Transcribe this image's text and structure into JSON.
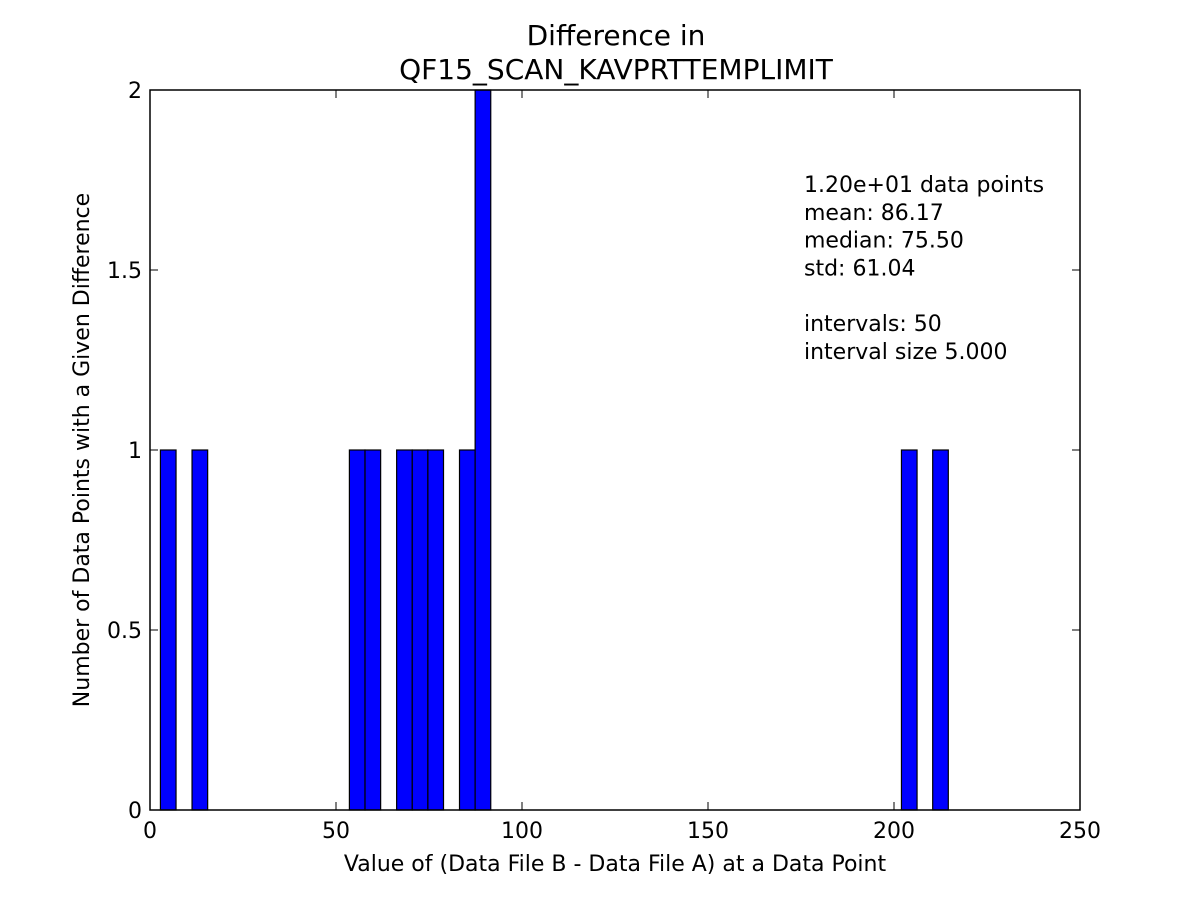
{
  "chart_data": {
    "type": "bar",
    "title": [
      "Difference in",
      "QF15_SCAN_KAVPRTTEMPLIMIT"
    ],
    "xlabel": "Value of (Data File B - Data File A) at a Data Point",
    "ylabel": "Number of Data Points with a Given Difference",
    "xlim": [
      0,
      250
    ],
    "ylim": [
      0,
      2
    ],
    "x_ticks": [
      0,
      50,
      100,
      150,
      200,
      250
    ],
    "x_tick_labels": [
      "0",
      "50",
      "100",
      "150",
      "200",
      "250"
    ],
    "y_ticks": [
      0,
      0.5,
      1,
      1.5,
      2
    ],
    "y_tick_labels": [
      "0",
      "0.5",
      "1",
      "1.5",
      "2"
    ],
    "bar_color": "#0000ff",
    "bar_width": 4.2,
    "bars": [
      {
        "x": 2.8,
        "value": 1
      },
      {
        "x": 11.3,
        "value": 1
      },
      {
        "x": 53.6,
        "value": 1
      },
      {
        "x": 57.8,
        "value": 1
      },
      {
        "x": 66.3,
        "value": 1
      },
      {
        "x": 70.5,
        "value": 1
      },
      {
        "x": 74.7,
        "value": 1
      },
      {
        "x": 83.2,
        "value": 1
      },
      {
        "x": 87.4,
        "value": 2
      },
      {
        "x": 202.0,
        "value": 1
      },
      {
        "x": 210.4,
        "value": 1
      }
    ],
    "grid": false,
    "annotations": [
      "1.20e+01 data points",
      "mean: 86.17",
      "median: 75.50",
      "std: 61.04",
      "",
      "intervals: 50",
      "interval size 5.000"
    ]
  }
}
